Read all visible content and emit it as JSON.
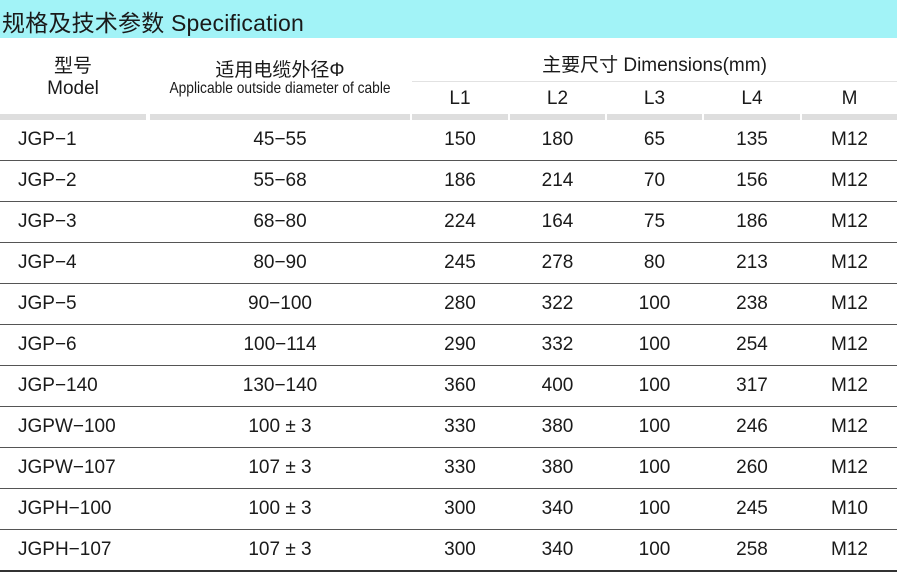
{
  "title": "规格及技术参数  Specification",
  "header": {
    "model_cn": "型号",
    "model_en": "Model",
    "cable_cn": "适用电缆外径Φ",
    "cable_en": "Applicable outside diameter of cable",
    "dimensions": "主要尺寸  Dimensions(mm)",
    "sub_columns": [
      "L1",
      "L2",
      "L3",
      "L4",
      "M"
    ]
  },
  "colors": {
    "title_bar": "#a2f3f7",
    "header_rule": "#dedede",
    "row_rule": "#555555"
  },
  "rows": [
    [
      "JGP−1",
      "45−55",
      "150",
      "180",
      "65",
      "135",
      "M12"
    ],
    [
      "JGP−2",
      "55−68",
      "186",
      "214",
      "70",
      "156",
      "M12"
    ],
    [
      "JGP−3",
      "68−80",
      "224",
      "164",
      "75",
      "186",
      "M12"
    ],
    [
      "JGP−4",
      "80−90",
      "245",
      "278",
      "80",
      "213",
      "M12"
    ],
    [
      "JGP−5",
      "90−100",
      "280",
      "322",
      "100",
      "238",
      "M12"
    ],
    [
      "JGP−6",
      "100−114",
      "290",
      "332",
      "100",
      "254",
      "M12"
    ],
    [
      "JGP−140",
      "130−140",
      "360",
      "400",
      "100",
      "317",
      "M12"
    ],
    [
      "JGPW−100",
      "100 ± 3",
      "330",
      "380",
      "100",
      "246",
      "M12"
    ],
    [
      "JGPW−107",
      "107 ± 3",
      "330",
      "380",
      "100",
      "260",
      "M12"
    ],
    [
      "JGPH−100",
      "100 ± 3",
      "300",
      "340",
      "100",
      "245",
      "M10"
    ],
    [
      "JGPH−107",
      "107 ± 3",
      "300",
      "340",
      "100",
      "258",
      "M12"
    ]
  ]
}
